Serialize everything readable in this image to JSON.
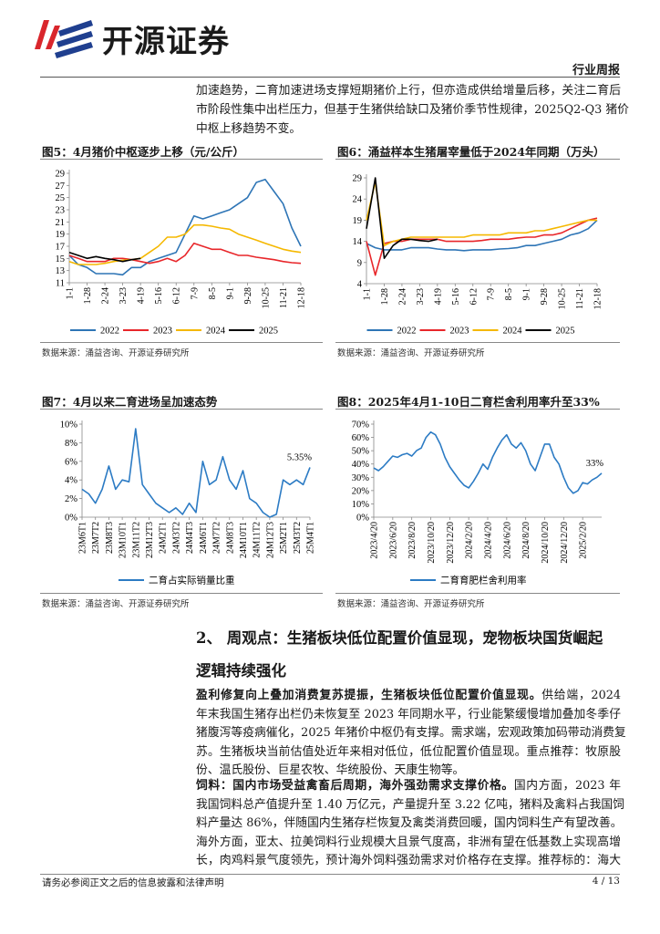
{
  "header": {
    "logo": "开源证券",
    "tag": "行业周报"
  },
  "intro_lines": [
    "加速趋势，二育加速进场支撑短期猪价上行，但亦造成供给增量后移，关注二育后",
    "市阶段性集中出栏压力，但基于生猪供给缺口及猪价季节性规律，2025Q2-Q3 猪价",
    "中枢上移趋势不变。"
  ],
  "figures": [
    {
      "title": "图5：4月猪价中枢逐步上移（元/公斤）",
      "source": "数据来源：涌益咨询、开源证券研究所",
      "chart": {
        "type": "line",
        "categories": [
          "1-1",
          null,
          "1-28",
          null,
          "2-24",
          null,
          "3-23",
          null,
          "4-19",
          null,
          "5-16",
          null,
          "6-12",
          null,
          "7-9",
          null,
          "8-5",
          null,
          "9-1",
          null,
          "9-28",
          null,
          "10-25",
          null,
          "11-21",
          null,
          "12-18"
        ],
        "ylim": [
          11,
          29
        ],
        "yticks": [
          11,
          13,
          15,
          17,
          19,
          21,
          23,
          25,
          27,
          29
        ],
        "series": [
          {
            "name": "2022",
            "color": "#2e75b6",
            "values": [
              15.5,
              14,
              13.5,
              12.5,
              12.5,
              12.5,
              12.3,
              13.5,
              13.5,
              14.5,
              15,
              15.5,
              16,
              19,
              22,
              21.5,
              22,
              22.5,
              23,
              24,
              25,
              27.5,
              28,
              26,
              24,
              20,
              17
            ]
          },
          {
            "name": "2023",
            "color": "#e8262a",
            "values": [
              15.5,
              15,
              14.5,
              14.5,
              14.5,
              15,
              15,
              14.8,
              14.5,
              14.2,
              14.5,
              15,
              14.5,
              15.5,
              17.5,
              17,
              16.5,
              16.5,
              16,
              15.5,
              15.5,
              15.2,
              15,
              14.8,
              14.5,
              14.3,
              14.2
            ]
          },
          {
            "name": "2024",
            "color": "#f5b800",
            "values": [
              14.5,
              14,
              14,
              14,
              14.2,
              14.5,
              14.7,
              14.8,
              15,
              16,
              17,
              18.5,
              18.5,
              19,
              20.5,
              20.5,
              20.3,
              20,
              19.8,
              19,
              18.5,
              18,
              17.5,
              17,
              16.5,
              16.2,
              16
            ]
          },
          {
            "name": "2025",
            "color": "#000000",
            "values": [
              16,
              15.5,
              15,
              15.3,
              15,
              14.8,
              14.5,
              14.8,
              15,
              null,
              null,
              null,
              null,
              null,
              null,
              null,
              null,
              null,
              null,
              null,
              null,
              null,
              null,
              null,
              null,
              null,
              null
            ]
          }
        ]
      }
    },
    {
      "title": "图6：涌益样本生猪屠宰量低于2024年同期（万头）",
      "source": "数据来源：涌益咨询、开源证券研究所",
      "chart": {
        "type": "line",
        "categories": [
          "1-1",
          null,
          "1-28",
          null,
          "2-24",
          null,
          "3-23",
          null,
          "4-19",
          null,
          "5-16",
          null,
          "6-12",
          null,
          "7-9",
          null,
          "8-5",
          null,
          "9-1",
          null,
          "9-28",
          null,
          "10-25",
          null,
          "11-21",
          null,
          "12-18"
        ],
        "ylim": [
          4,
          29
        ],
        "yticks": [
          4,
          9,
          14,
          19,
          24,
          29
        ],
        "series": [
          {
            "name": "2022",
            "color": "#2e75b6",
            "values": [
              13.5,
              12.5,
              12,
              12,
              12,
              12.5,
              12.5,
              12.5,
              12.2,
              12,
              12,
              11.8,
              12,
              12,
              12,
              12.2,
              12.3,
              12.5,
              13,
              13,
              13.5,
              14,
              14.5,
              15.5,
              16,
              17,
              19
            ]
          },
          {
            "name": "2023",
            "color": "#e8262a",
            "values": [
              14,
              6,
              13.5,
              14,
              14,
              14.5,
              14.5,
              14.5,
              14.5,
              14,
              14,
              14,
              14,
              14.2,
              14.5,
              14.5,
              14.5,
              14.8,
              15,
              15,
              15.5,
              15.5,
              16,
              17,
              18,
              19,
              19.5
            ]
          },
          {
            "name": "2024",
            "color": "#f5b800",
            "values": [
              19,
              28,
              13,
              14,
              14.5,
              15,
              15,
              15,
              15,
              15,
              15,
              15,
              15.5,
              15.5,
              15.5,
              15.5,
              16,
              16,
              16,
              16.5,
              16.5,
              17,
              17.5,
              18,
              18.5,
              19,
              19
            ]
          },
          {
            "name": "2025",
            "color": "#000000",
            "values": [
              17,
              29,
              10,
              13,
              14.5,
              14.5,
              14.2,
              14,
              14.5,
              null,
              null,
              null,
              null,
              null,
              null,
              null,
              null,
              null,
              null,
              null,
              null,
              null,
              null,
              null,
              null,
              null,
              null
            ]
          }
        ]
      }
    },
    {
      "title": "图7：4月以来二育进场呈加速态势",
      "source": "数据来源：涌益咨询、开源证券研究所",
      "chart": {
        "type": "line",
        "categories": [
          "23M6T1",
          null,
          "23M7T2",
          null,
          "23M8T3",
          null,
          "23M10T1",
          null,
          "23M11T2",
          null,
          "23M12T3",
          null,
          "24M2T1",
          null,
          "24M3T2",
          null,
          "24M4T3",
          null,
          "24M6T1",
          null,
          "24M7T2",
          null,
          "24M8T3",
          null,
          "24M10T1",
          null,
          "24M11T2",
          null,
          "24M12T3",
          null,
          "25M2T1",
          null,
          "25M3T2",
          null,
          "25M4T1"
        ],
        "ylim": [
          0,
          10
        ],
        "yticks": [
          {
            "value": 0,
            "label": "0%"
          },
          {
            "value": 2,
            "label": "2%"
          },
          {
            "value": 4,
            "label": "4%"
          },
          {
            "value": 6,
            "label": "6%"
          },
          {
            "value": 8,
            "label": "8%"
          },
          {
            "value": 10,
            "label": "10%"
          }
        ],
        "annotations": [
          {
            "text": "5.35%"
          }
        ],
        "series": [
          {
            "name": "二育占实际销量比重",
            "color": "#2c7bc4",
            "values": [
              3,
              2.5,
              1.5,
              3,
              5.5,
              3,
              4,
              3.8,
              9.5,
              3.5,
              2.5,
              1.5,
              1,
              0.5,
              1,
              0.3,
              1.5,
              0.5,
              6,
              3.5,
              4,
              6.5,
              4,
              3,
              5,
              2,
              1.5,
              0.5,
              0,
              0.3,
              4,
              3.5,
              4,
              3.5,
              5.35
            ]
          }
        ]
      }
    },
    {
      "title": "图8：2025年4月1-10日二育栏舍利用率升至33%",
      "source": "数据来源：涌益咨询、开源证券研究所",
      "chart": {
        "type": "line",
        "categories": [
          "2023/4/20",
          null,
          null,
          null,
          "2023/6/20",
          null,
          null,
          null,
          "2023/8/20",
          null,
          null,
          null,
          "2023/10/20",
          null,
          null,
          null,
          "2023/12/20",
          null,
          null,
          null,
          "2024/2/20",
          null,
          null,
          null,
          "2024/4/20",
          null,
          null,
          null,
          "2024/6/20",
          null,
          null,
          null,
          "2024/8/20",
          null,
          null,
          null,
          "2024/10/20",
          null,
          null,
          null,
          "2024/12/20",
          null,
          null,
          null,
          "2025/2/20",
          null,
          null,
          null,
          null
        ],
        "ylim": [
          0,
          70
        ],
        "yticks": [
          {
            "value": 0,
            "label": "0%"
          },
          {
            "value": 10,
            "label": "10%"
          },
          {
            "value": 20,
            "label": "20%"
          },
          {
            "value": 30,
            "label": "30%"
          },
          {
            "value": 40,
            "label": "40%"
          },
          {
            "value": 50,
            "label": "50%"
          },
          {
            "value": 60,
            "label": "60%"
          },
          {
            "value": 70,
            "label": "70%"
          }
        ],
        "annotations": [
          {
            "text": "33%"
          }
        ],
        "series": [
          {
            "name": "二育育肥栏舍利用率",
            "color": "#2c7bc4",
            "values": [
              37,
              35,
              38,
              42,
              46,
              45,
              47,
              48,
              46,
              50,
              52,
              60,
              64,
              62,
              55,
              45,
              38,
              33,
              28,
              24,
              22,
              27,
              33,
              40,
              36,
              45,
              52,
              58,
              62,
              55,
              52,
              56,
              50,
              40,
              35,
              45,
              55,
              55,
              45,
              40,
              30,
              22,
              18,
              20,
              26,
              25,
              28,
              30,
              33
            ]
          }
        ]
      }
    }
  ],
  "section": {
    "heading_lines": [
      "2、 周观点：生猪板块低位配置价值显现，宠物板块国货崛起",
      "逻辑持续强化"
    ]
  },
  "paragraphs": [
    {
      "lead": "盈利修复向上叠加消费复苏提振，生猪板块低位配置价值显现。",
      "first": "供给端，2024",
      "lines": [
        "年末我国生猪存出栏仍未恢复至 2023 年同期水平，行业能繁缓慢增加叠加冬季仔",
        "猪腹泻等疫病催化，2025 年猪价中枢仍有支撑。需求端，宏观政策加码带动消费复",
        "苏。生猪板块当前估值处近年来相对低位，低位配置价值显现。重点推荐：牧原股",
        "份、温氏股份、巨星农牧、华统股份、天康生物等。"
      ]
    },
    {
      "lead": "饲料：国内市场受益禽畜后周期，海外强劲需求支撑价格。",
      "first": "国内方面，2023 年",
      "lines": [
        "我国饲料总产值提升至 1.40 万亿元，产量提升至 3.22 亿吨，猪料及禽料占我国饲",
        "料产量达 86%，伴随国内生猪存栏恢复及禽类消费回暖，国内饲料生产有望改善。",
        "海外方面，亚太、拉美饲料行业规模大且景气度高，非洲有望在低基数上实现高增",
        "长，肉鸡料景气度领先，预计海外饲料强劲需求对价格存在支撑。推荐标的：海大"
      ]
    }
  ],
  "footer": {
    "disclaimer": "请务必参阅正文之后的信息披露和法律声明",
    "page": "4 / 13"
  }
}
